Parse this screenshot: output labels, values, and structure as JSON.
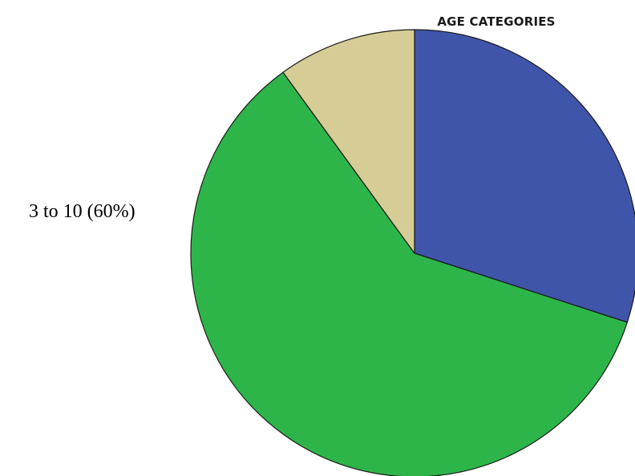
{
  "chart_data": {
    "type": "pie",
    "title": "AGE CATEGORIES",
    "start_angle_deg": 0,
    "direction": "clockwise",
    "slices": [
      {
        "value": 30,
        "color": "#3f55aa",
        "label": ""
      },
      {
        "value": 60,
        "color": "#2eb54a",
        "label": "3 to 10 (60%)"
      },
      {
        "value": 10,
        "color": "#d6cd96",
        "label": ""
      }
    ],
    "stroke_color": "#1a1a1a"
  }
}
